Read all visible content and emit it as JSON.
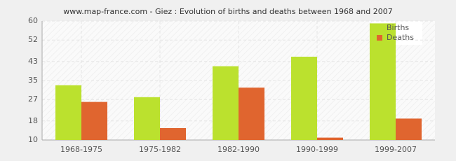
{
  "chart_data": {
    "type": "bar",
    "title": "www.map-france.com - Giez : Evolution of births and deaths between 1968 and 2007",
    "categories": [
      "1968-1975",
      "1975-1982",
      "1982-1990",
      "1990-1999",
      "1999-2007"
    ],
    "series": [
      {
        "name": "Births",
        "color": "#bbe12e",
        "values": [
          33,
          28,
          41,
          45,
          59
        ]
      },
      {
        "name": "Deaths",
        "color": "#e0652f",
        "values": [
          26,
          15,
          32,
          11,
          19
        ]
      }
    ],
    "ylim": [
      10,
      60
    ],
    "yticks": [
      10,
      18,
      27,
      35,
      43,
      52,
      60
    ],
    "grid": true,
    "legend": "top-right"
  }
}
